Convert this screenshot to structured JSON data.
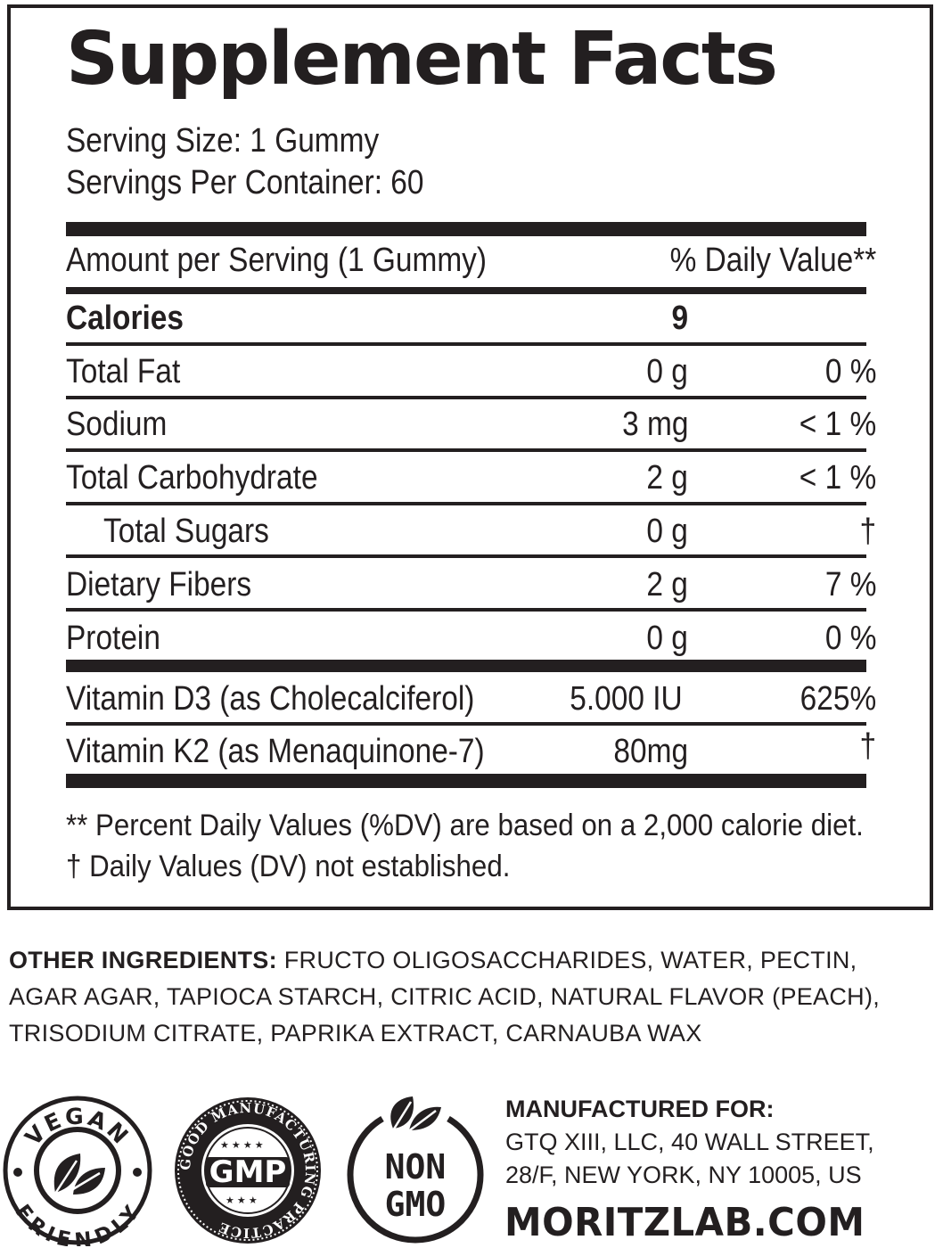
{
  "facts": {
    "title": "Supplement Facts",
    "serving_size": "Serving Size: 1 Gummy",
    "servings_per_container": "Servings Per Container: 60",
    "header_left": "Amount per Serving (1 Gummy)",
    "header_right": "% Daily Value**",
    "calories": {
      "label": "Calories",
      "amount": "9"
    },
    "rows": [
      {
        "label": "Total Fat",
        "amount": "0 g",
        "dv": "0 %"
      },
      {
        "label": "Sodium",
        "amount": "3 mg",
        "dv": "< 1 %"
      },
      {
        "label": "Total Carbohydrate",
        "amount": "2 g",
        "dv": "< 1 %"
      },
      {
        "label": "Total Sugars",
        "amount": "0 g",
        "dv": "†"
      },
      {
        "label": "Dietary Fibers",
        "amount": "2 g",
        "dv": "7 %"
      },
      {
        "label": "Protein",
        "amount": "0 g",
        "dv": "0 %"
      }
    ],
    "vitamins": [
      {
        "label": "Vitamin D3 (as Cholecalciferol)",
        "amount": "5.000 IU",
        "dv": "625%"
      },
      {
        "label": "Vitamin K2 (as Menaquinone-7)",
        "amount": "80mg",
        "dv": "†"
      }
    ],
    "footnote_1": "** Percent Daily Values (%DV) are based on a 2,000 calorie diet.",
    "footnote_2": "† Daily Values (DV) not established."
  },
  "ingredients": {
    "label": "OTHER INGREDIENTS:",
    "line_1": " FRUCTO OLIGOSACCHARIDES, WATER, PECTIN,",
    "line_2": "AGAR AGAR, TAPIOCA STARCH, CITRIC ACID, NATURAL FLAVOR (PEACH),",
    "line_3": "TRISODIUM CITRATE, PAPRIKA EXTRACT, CARNAUBA WAX"
  },
  "badges": {
    "vegan_top": "VEGAN",
    "vegan_bottom": "FRIENDLY",
    "gmp_center": "GMP",
    "gmp_ring": "GOOD MANUFACTURING PRACTICE",
    "non_gmo_line_1": "NON",
    "non_gmo_line_2": "GMO",
    "icons": [
      "vegan-leaf-icon",
      "gmp-seal-icon",
      "non-gmo-leaf-icon"
    ]
  },
  "manufacturer": {
    "title": "MANUFACTURED FOR:",
    "line_1": "GTQ XIII, LLC, 40 WALL STREET,",
    "line_2": "28/F, NEW YORK, NY 10005, US",
    "website": "MORITZLAB.COM"
  }
}
